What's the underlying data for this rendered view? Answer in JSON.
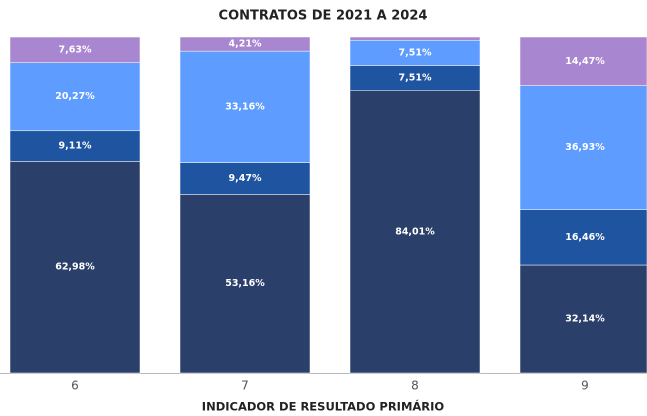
{
  "chart_data": {
    "type": "stacked_bar",
    "title": "CONTRATOS DE 2021 A 2024",
    "x_label": "INDICADOR DE RESULTADO PRIMÁRIO",
    "categories": [
      "6",
      "7",
      "8",
      "9"
    ],
    "ylim": [
      0,
      100
    ],
    "series": [
      {
        "color": "#2b3f6b",
        "values": [
          62.98,
          53.16,
          84.01,
          32.14
        ],
        "value_labels": [
          "62,98%",
          "53,16%",
          "84,01%",
          "32,14%"
        ]
      },
      {
        "color": "#1f55a0",
        "values": [
          9.11,
          9.47,
          7.51,
          16.46
        ],
        "value_labels": [
          "9,11%",
          "9,47%",
          "7,51%",
          "16,46%"
        ]
      },
      {
        "color": "#5e9cff",
        "values": [
          20.27,
          33.16,
          7.51,
          36.93
        ],
        "value_labels": [
          "20,27%",
          "33,16%",
          "7,51%",
          "36,93%"
        ]
      },
      {
        "color": "#a987d0",
        "values": [
          7.63,
          4.21,
          0.97,
          14.47
        ],
        "value_labels": [
          "7,63%",
          "4,21%",
          null,
          "14,47%"
        ]
      }
    ]
  }
}
